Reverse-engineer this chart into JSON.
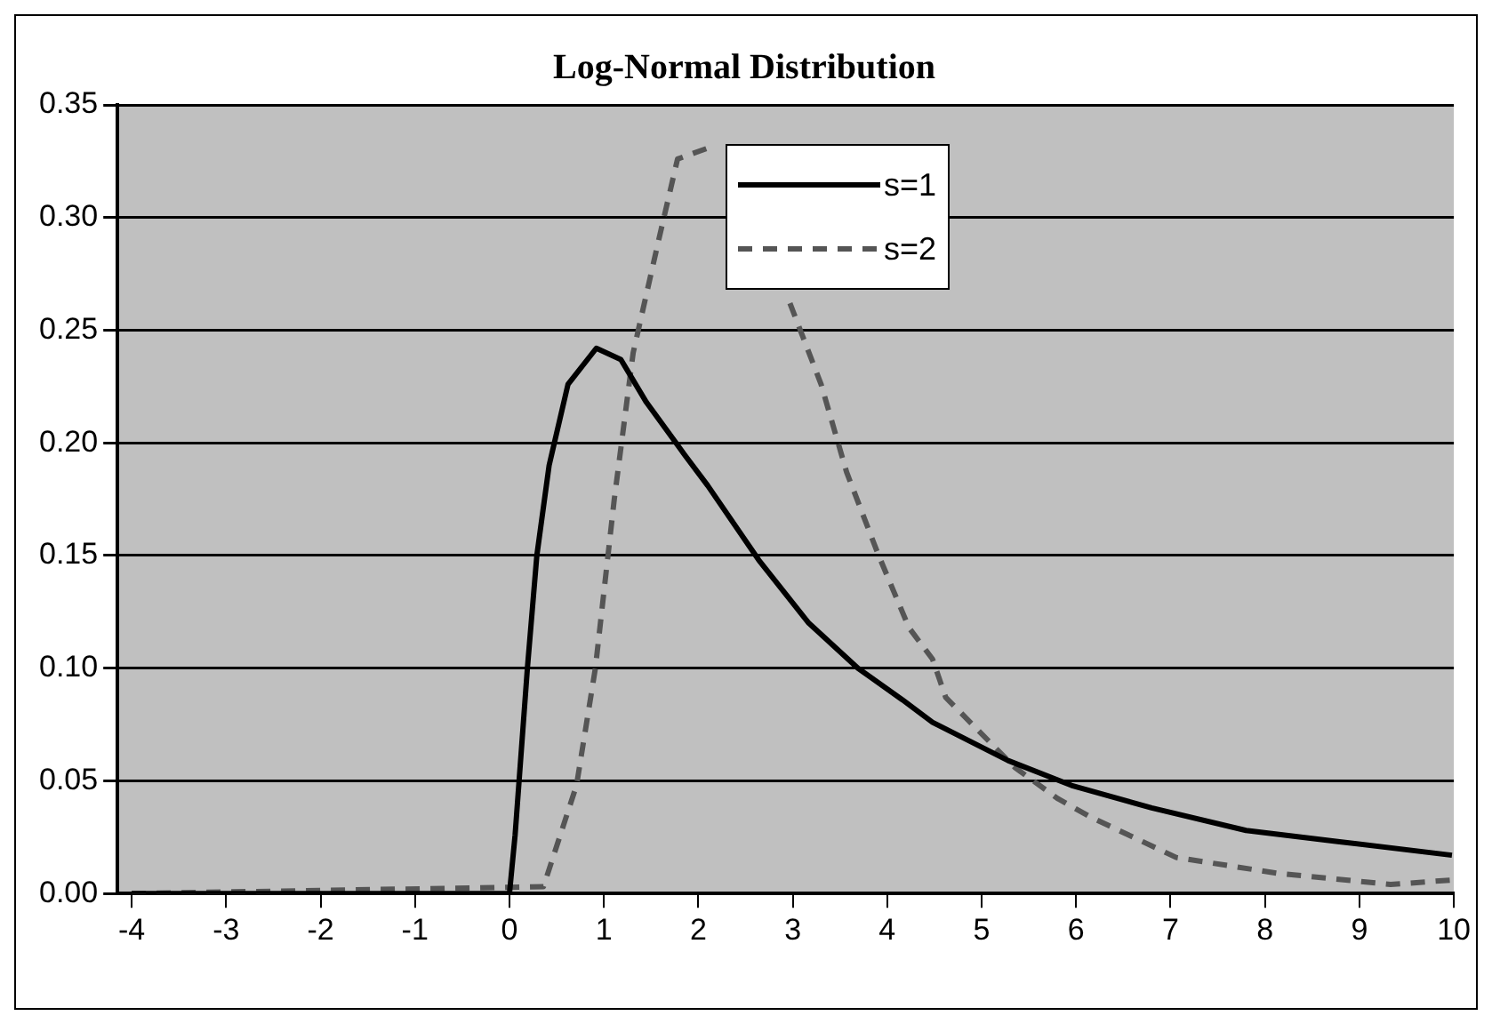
{
  "chart_data": {
    "type": "line",
    "title": "Log-Normal Distribution",
    "series": [
      {
        "name": "s=1",
        "color": "#000000",
        "line_style": "solid",
        "x": [
          -4,
          0,
          0.06,
          0.19,
          0.29,
          0.42,
          0.62,
          0.92,
          1.18,
          1.45,
          1.85,
          2.1,
          2.64,
          3.17,
          3.69,
          4.16,
          4.48,
          4.62,
          5.28,
          5.95,
          6.8,
          7.8,
          8.79,
          9.98
        ],
        "values": [
          0,
          0,
          0.026,
          0.1,
          0.15,
          0.19,
          0.226,
          0.242,
          0.237,
          0.218,
          0.195,
          0.181,
          0.148,
          0.12,
          0.1,
          0.086,
          0.076,
          0.073,
          0.059,
          0.048,
          0.038,
          0.028,
          0.023,
          0.017
        ]
      },
      {
        "name": "s=2",
        "color": "#555555",
        "line_style": "dashed",
        "x": [
          -4,
          0.36,
          0.71,
          0.91,
          1.11,
          1.31,
          1.58,
          1.78,
          2.18,
          2.6,
          2.97,
          3.3,
          3.57,
          3.9,
          4.23,
          4.48,
          4.62,
          5.35,
          5.81,
          6.15,
          7.06,
          8.13,
          9.33,
          9.98
        ],
        "values": [
          0,
          0.003,
          0.048,
          0.1,
          0.175,
          0.24,
          0.29,
          0.326,
          0.332,
          null,
          0.262,
          0.226,
          0.187,
          0.151,
          0.118,
          0.104,
          0.087,
          0.056,
          0.042,
          0.034,
          0.016,
          0.009,
          0.004,
          0.006
        ]
      }
    ],
    "xlim": [
      -4.15,
      10
    ],
    "xticks": [
      -4,
      -3,
      -2,
      -1,
      0,
      1,
      2,
      3,
      4,
      5,
      6,
      7,
      8,
      9,
      10
    ],
    "ylim": [
      0,
      0.35
    ],
    "yticks": [
      {
        "value": 0,
        "label": "0.00"
      },
      {
        "value": 0.05,
        "label": "0.05"
      },
      {
        "value": 0.1,
        "label": "0.10"
      },
      {
        "value": 0.15,
        "label": "0.15"
      },
      {
        "value": 0.2,
        "label": "0.20"
      },
      {
        "value": 0.25,
        "label": "0.25"
      },
      {
        "value": 0.3,
        "label": "0.30"
      },
      {
        "value": 0.35,
        "label": "0.35"
      }
    ],
    "grid": "y",
    "legend": "top",
    "marker": "none"
  }
}
